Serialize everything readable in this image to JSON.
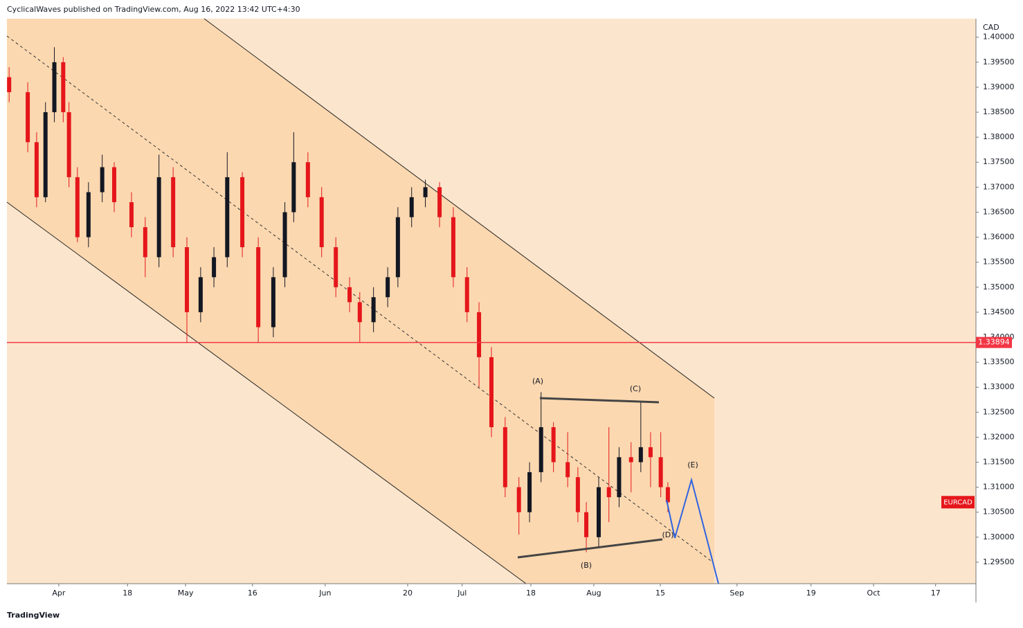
{
  "header": {
    "text": "CyclicalWaves published on TradingView.com, Aug 16, 2022 13:42 UTC+4:30"
  },
  "footer": {
    "brand": "TradingView"
  },
  "chart_data": {
    "type": "candlestick",
    "symbol": "EURCAD",
    "currency": "CAD",
    "up_color": "#131722",
    "down_color": "#e5161b",
    "x": [
      -11.2,
      -7,
      -5,
      -3,
      -1,
      1,
      2.3,
      4.2,
      6.7,
      9.8,
      12.5,
      16.4,
      19.5,
      22.6,
      25.8,
      28.9,
      32,
      35,
      38,
      41.4,
      45,
      48.4,
      51,
      53,
      56.2,
      59.3,
      62.5,
      65.6,
      67.9,
      71,
      74.2,
      76.5,
      79.6,
      82.7,
      85.9,
      89,
      92.1,
      94.8,
      97.6,
      100.7,
      103.8,
      106.2,
      108.8,
      111.6,
      114.8,
      117.1,
      119,
      121.8,
      124.1,
      126.4,
      129.1,
      131.3,
      133.5,
      135.8,
      137.4
    ],
    "open": [
      1.392,
      1.389,
      1.379,
      1.368,
      1.385,
      1.395,
      1.385,
      1.372,
      1.36,
      1.369,
      1.374,
      1.367,
      1.362,
      1.356,
      1.372,
      1.358,
      1.345,
      1.352,
      1.356,
      1.372,
      1.358,
      1.342,
      1.352,
      1.365,
      1.375,
      1.368,
      1.358,
      1.35,
      1.347,
      1.343,
      1.348,
      1.352,
      1.364,
      1.368,
      1.37,
      1.364,
      1.352,
      1.345,
      1.336,
      1.322,
      1.31,
      1.305,
      1.313,
      1.322,
      1.315,
      1.312,
      1.305,
      1.3,
      1.31,
      1.308,
      1.316,
      1.315,
      1.318,
      1.316,
      1.31
    ],
    "high": [
      1.394,
      1.391,
      1.381,
      1.387,
      1.398,
      1.396,
      1.387,
      1.374,
      1.371,
      1.3765,
      1.375,
      1.369,
      1.364,
      1.3765,
      1.374,
      1.36,
      1.354,
      1.358,
      1.377,
      1.373,
      1.36,
      1.354,
      1.367,
      1.381,
      1.377,
      1.37,
      1.36,
      1.352,
      1.349,
      1.35,
      1.354,
      1.366,
      1.37,
      1.3715,
      1.371,
      1.366,
      1.354,
      1.347,
      1.338,
      1.324,
      1.312,
      1.315,
      1.329,
      1.323,
      1.321,
      1.314,
      1.307,
      1.312,
      1.322,
      1.318,
      1.319,
      1.327,
      1.321,
      1.321,
      1.311
    ],
    "low": [
      1.387,
      1.377,
      1.366,
      1.367,
      1.383,
      1.383,
      1.37,
      1.359,
      1.358,
      1.367,
      1.365,
      1.36,
      1.352,
      1.354,
      1.356,
      1.339,
      1.343,
      1.35,
      1.354,
      1.356,
      1.339,
      1.34,
      1.35,
      1.363,
      1.366,
      1.356,
      1.348,
      1.345,
      1.339,
      1.341,
      1.346,
      1.35,
      1.362,
      1.366,
      1.362,
      1.35,
      1.343,
      1.33,
      1.32,
      1.308,
      1.3005,
      1.303,
      1.311,
      1.313,
      1.31,
      1.303,
      1.297,
      1.298,
      1.303,
      1.306,
      1.309,
      1.313,
      1.31,
      1.308,
      1.305
    ],
    "close": [
      1.389,
      1.379,
      1.368,
      1.385,
      1.395,
      1.385,
      1.372,
      1.36,
      1.369,
      1.374,
      1.367,
      1.362,
      1.356,
      1.372,
      1.358,
      1.345,
      1.352,
      1.356,
      1.372,
      1.358,
      1.342,
      1.352,
      1.365,
      1.375,
      1.368,
      1.358,
      1.35,
      1.347,
      1.343,
      1.348,
      1.352,
      1.364,
      1.368,
      1.37,
      1.364,
      1.352,
      1.345,
      1.336,
      1.322,
      1.31,
      1.305,
      1.313,
      1.322,
      1.315,
      1.312,
      1.305,
      1.3,
      1.31,
      1.308,
      1.316,
      1.315,
      1.318,
      1.316,
      1.31,
      1.307
    ],
    "xlim": [
      -11.7,
      206.9
    ],
    "ylim": [
      1.2907,
      1.4037
    ],
    "xticks": [
      {
        "value": 0,
        "label": "Apr"
      },
      {
        "value": 15.5,
        "label": "18"
      },
      {
        "value": 28.6,
        "label": "May"
      },
      {
        "value": 43.7,
        "label": "16"
      },
      {
        "value": 60.1,
        "label": "Jun"
      },
      {
        "value": 78.7,
        "label": "20"
      },
      {
        "value": 91,
        "label": "Jul"
      },
      {
        "value": 106.5,
        "label": "18"
      },
      {
        "value": 120.7,
        "label": "Aug"
      },
      {
        "value": 135.7,
        "label": "15"
      },
      {
        "value": 153,
        "label": "Sep"
      },
      {
        "value": 169.7,
        "label": "19"
      },
      {
        "value": 183.8,
        "label": "Oct"
      },
      {
        "value": 197.8,
        "label": "17"
      }
    ],
    "yticks": [
      {
        "value": 1.295,
        "label": "1.29500"
      },
      {
        "value": 1.3,
        "label": "1.30000"
      },
      {
        "value": 1.305,
        "label": "1.30500"
      },
      {
        "value": 1.31,
        "label": "1.31000"
      },
      {
        "value": 1.315,
        "label": "1.31500"
      },
      {
        "value": 1.32,
        "label": "1.32000"
      },
      {
        "value": 1.325,
        "label": "1.32500"
      },
      {
        "value": 1.33,
        "label": "1.33000"
      },
      {
        "value": 1.335,
        "label": "1.33500"
      },
      {
        "value": 1.34,
        "label": "1.34000"
      },
      {
        "value": 1.345,
        "label": "1.34500"
      },
      {
        "value": 1.35,
        "label": "1.35000"
      },
      {
        "value": 1.355,
        "label": "1.35500"
      },
      {
        "value": 1.36,
        "label": "1.36000"
      },
      {
        "value": 1.365,
        "label": "1.36500"
      },
      {
        "value": 1.37,
        "label": "1.37000"
      },
      {
        "value": 1.375,
        "label": "1.37500"
      },
      {
        "value": 1.38,
        "label": "1.38000"
      },
      {
        "value": 1.385,
        "label": "1.38500"
      },
      {
        "value": 1.39,
        "label": "1.39000"
      },
      {
        "value": 1.395,
        "label": "1.39500"
      },
      {
        "value": 1.4,
        "label": "1.40000"
      }
    ],
    "hline": {
      "value": 1.33894,
      "label": "1.33894",
      "color": "#f23645"
    },
    "annotations": [
      "(A)",
      "(B)",
      "(C)",
      "(D)",
      "(E)"
    ]
  }
}
